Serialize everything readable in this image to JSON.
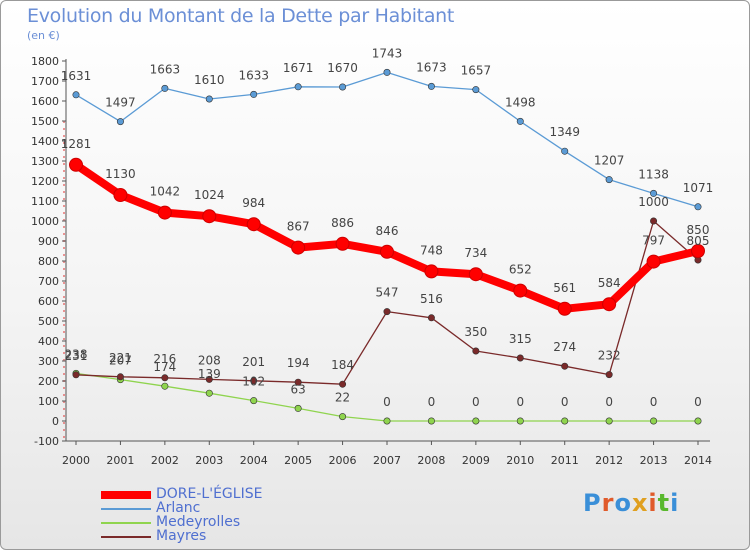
{
  "title": "Evolution du Montant de la Dette par Habitant",
  "subtitle": "(en €)",
  "brand": "Proxiti",
  "chart_data": {
    "type": "line",
    "title": "Evolution du Montant de la Dette par Habitant",
    "subtitle": "(en €)",
    "x": [
      "2000",
      "2001",
      "2002",
      "2003",
      "2004",
      "2005",
      "2006",
      "2007",
      "2008",
      "2009",
      "2010",
      "2011",
      "2012",
      "2013",
      "2014"
    ],
    "ylim": [
      -100,
      1800
    ],
    "yticks": [
      -100,
      0,
      100,
      200,
      300,
      400,
      500,
      600,
      700,
      800,
      900,
      1000,
      1100,
      1200,
      1300,
      1400,
      1500,
      1600,
      1700,
      1800
    ],
    "grid": false,
    "legend_position": "bottom-left",
    "series": [
      {
        "name": "DORE-L'ÉGLISE",
        "color": "#ff0000",
        "values": [
          1281,
          1130,
          1042,
          1024,
          984,
          867,
          886,
          846,
          748,
          734,
          652,
          561,
          584,
          797,
          850
        ]
      },
      {
        "name": "Arlanc",
        "color": "#5b9bd5",
        "values": [
          1631,
          1497,
          1663,
          1610,
          1633,
          1671,
          1670,
          1743,
          1673,
          1657,
          1498,
          1349,
          1207,
          1138,
          1071
        ]
      },
      {
        "name": "Medeyrolles",
        "color": "#8fd44e",
        "values": [
          238,
          207,
          174,
          139,
          102,
          63,
          22,
          0,
          0,
          0,
          0,
          0,
          0,
          0,
          0
        ]
      },
      {
        "name": "Mayres",
        "color": "#7a2a2a",
        "values": [
          231,
          221,
          216,
          208,
          201,
          194,
          184,
          547,
          516,
          350,
          315,
          274,
          232,
          1000,
          805
        ]
      }
    ]
  }
}
